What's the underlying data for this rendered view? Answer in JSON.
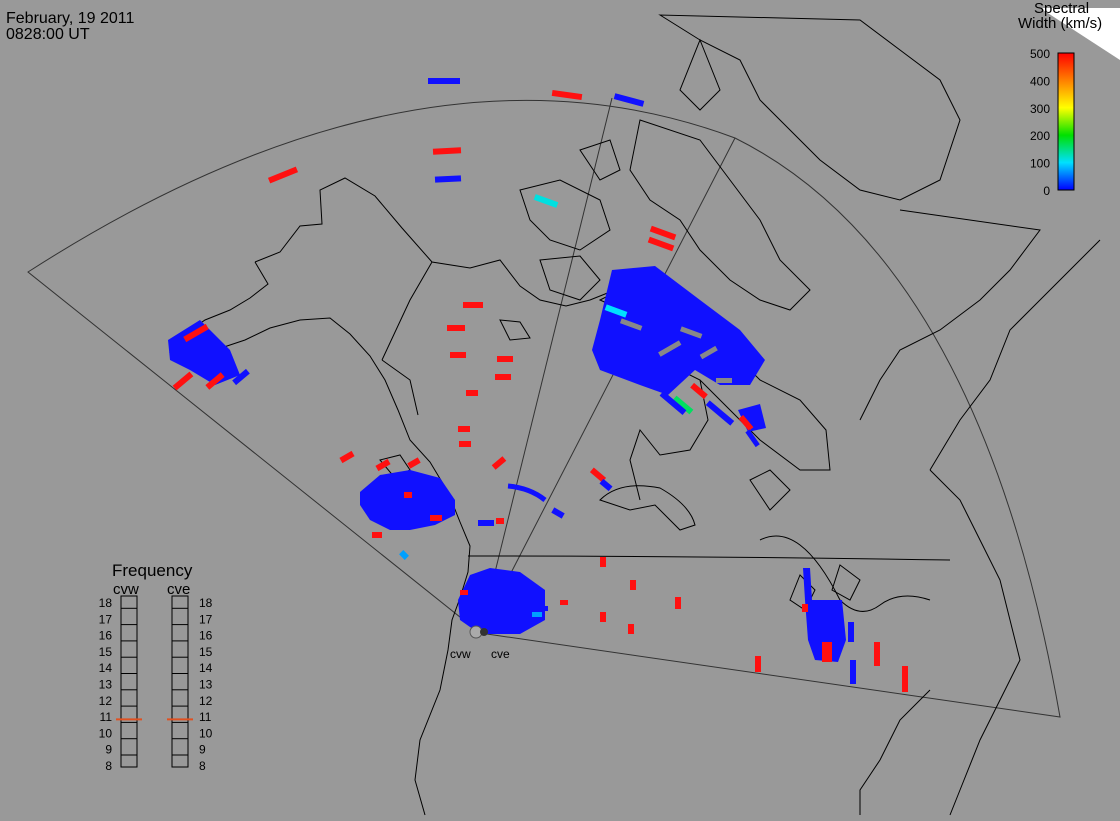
{
  "header": {
    "date": "February, 19 2011",
    "time": "0828:00 UT"
  },
  "colorbar": {
    "title_line1": "Spectral",
    "title_line2": "Width (km/s)",
    "ticks": [
      "500",
      "400",
      "300",
      "200",
      "100",
      "0"
    ],
    "colors": [
      "#ff0000",
      "#ff8000",
      "#ffff00",
      "#00ff00",
      "#00ffff",
      "#0000ff"
    ]
  },
  "radars": [
    {
      "code": "cvw"
    },
    {
      "code": "cve"
    }
  ],
  "frequency_panel": {
    "title": "Frequency",
    "left_label": "cvw",
    "right_label": "cve",
    "levels": [
      "18",
      "17",
      "16",
      "15",
      "14",
      "13",
      "12",
      "11",
      "10",
      "9",
      "8"
    ],
    "cvw_value": 10.8,
    "cve_value": 10.8,
    "marker_color": "#e05020"
  },
  "colors": {
    "background": "#999999",
    "coastline": "#000000",
    "fov_outline": "#333333",
    "low_width": "#1010ff",
    "high_width": "#ff1010"
  }
}
